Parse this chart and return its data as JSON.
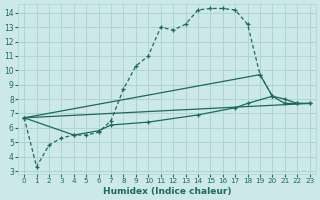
{
  "xlabel": "Humidex (Indice chaleur)",
  "bg_color": "#cce8e8",
  "grid_color": "#afd4d4",
  "line_color": "#1a6b5a",
  "xlim": [
    -0.5,
    23.5
  ],
  "ylim": [
    2.8,
    14.6
  ],
  "xticks": [
    0,
    1,
    2,
    3,
    4,
    5,
    6,
    7,
    8,
    9,
    10,
    11,
    12,
    13,
    14,
    15,
    16,
    17,
    18,
    19,
    20,
    21,
    22,
    23
  ],
  "yticks": [
    3,
    4,
    5,
    6,
    7,
    8,
    9,
    10,
    11,
    12,
    13,
    14
  ],
  "series": [
    {
      "x": [
        0,
        1,
        2,
        3,
        4,
        5,
        6,
        7,
        8,
        9,
        10,
        11,
        12,
        13,
        14,
        15,
        16,
        17,
        18,
        19,
        20
      ],
      "y": [
        6.7,
        3.3,
        4.8,
        5.3,
        5.5,
        5.5,
        5.7,
        6.5,
        8.7,
        10.3,
        11.0,
        13.0,
        12.8,
        13.2,
        14.2,
        14.3,
        14.3,
        14.2,
        13.2,
        9.7,
        8.2
      ]
    },
    {
      "x": [
        0,
        23
      ],
      "y": [
        6.7,
        7.7
      ]
    },
    {
      "x": [
        0,
        4,
        6,
        7,
        10,
        14,
        17,
        18,
        20,
        21,
        22,
        23
      ],
      "y": [
        6.7,
        5.5,
        5.8,
        6.2,
        6.4,
        6.9,
        7.4,
        7.7,
        8.2,
        8.0,
        7.7,
        7.7
      ]
    },
    {
      "x": [
        0,
        19,
        20,
        21,
        22,
        23
      ],
      "y": [
        6.7,
        9.7,
        8.2,
        7.7,
        7.7,
        7.7
      ]
    }
  ]
}
